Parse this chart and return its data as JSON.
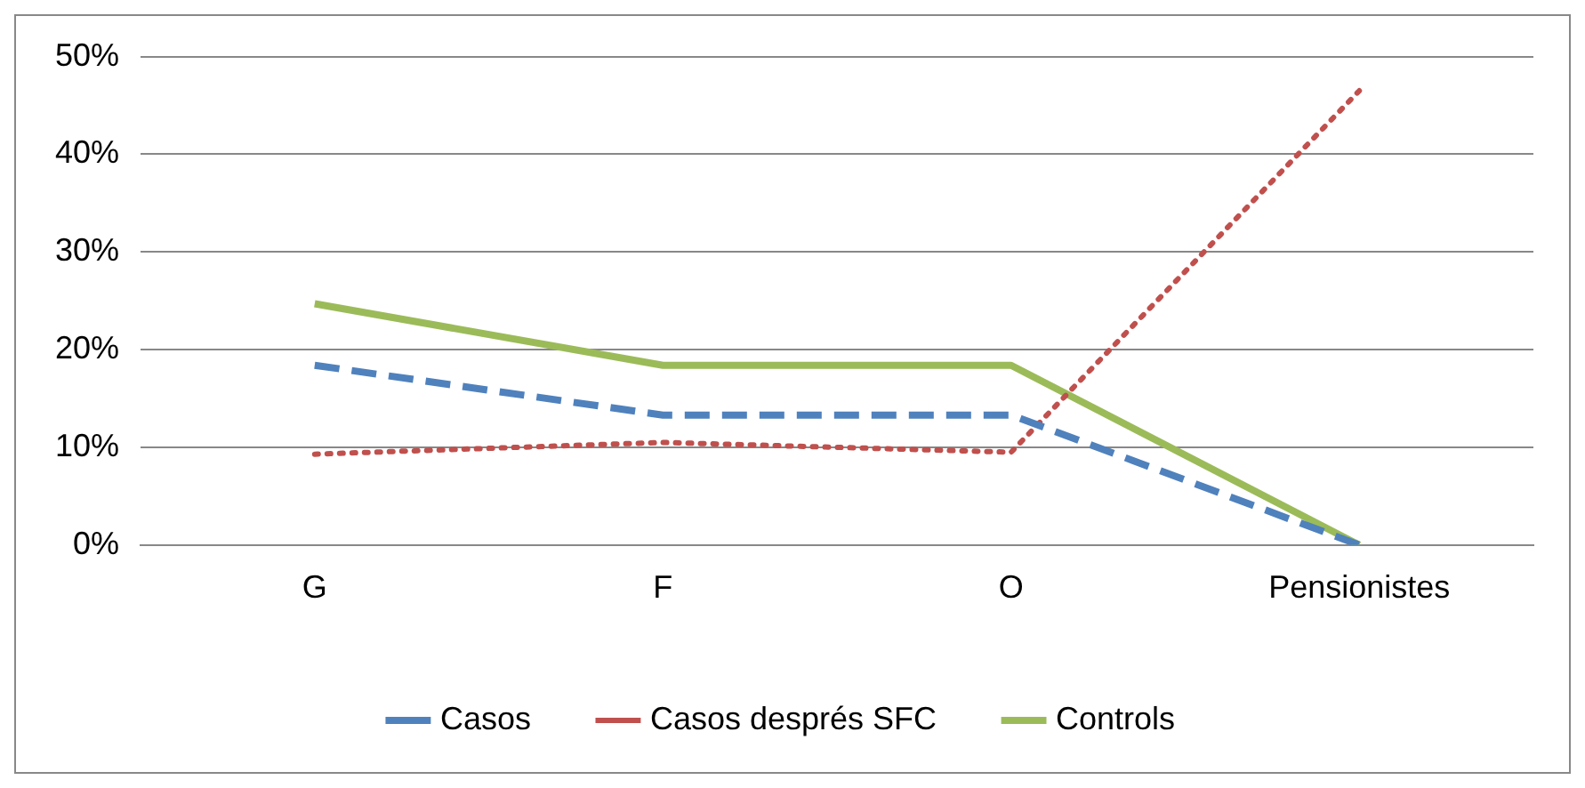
{
  "chart_data": {
    "type": "line",
    "categories": [
      "G",
      "F",
      "O",
      "Pensionistes"
    ],
    "series": [
      {
        "name": "Casos",
        "color": "#4f81bd",
        "line_style": "dashed",
        "values": [
          18.4,
          13.3,
          13.3,
          0
        ]
      },
      {
        "name": "Casos després SFC",
        "color": "#c0504d",
        "line_style": "dotted",
        "values": [
          9.3,
          10.5,
          9.5,
          46.5
        ]
      },
      {
        "name": "Controls",
        "color": "#9bbb59",
        "line_style": "solid",
        "values": [
          24.7,
          18.4,
          18.4,
          0
        ]
      }
    ],
    "ylim": [
      0,
      50
    ],
    "yticks": [
      {
        "value": 0,
        "label": "0%"
      },
      {
        "value": 10,
        "label": "10%"
      },
      {
        "value": 20,
        "label": "20%"
      },
      {
        "value": 30,
        "label": "30%"
      },
      {
        "value": 40,
        "label": "40%"
      },
      {
        "value": 50,
        "label": "50%"
      }
    ],
    "grid": "y",
    "legend": "bottom",
    "marker": "none"
  }
}
